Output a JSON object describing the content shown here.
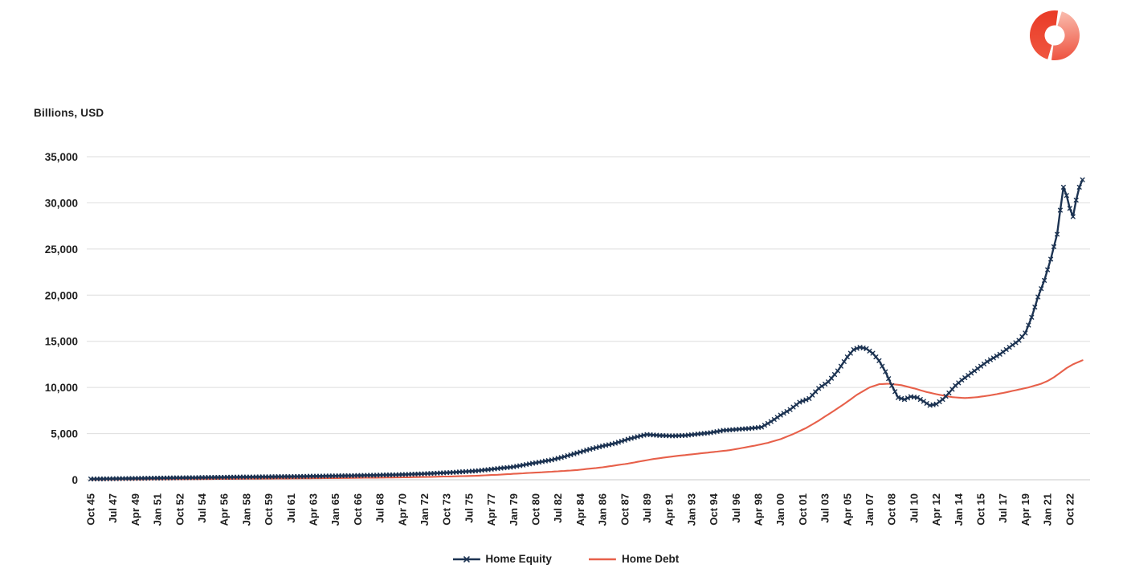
{
  "logo": {
    "name": "split-donut-logo",
    "left_color_top": "#e93b27",
    "left_color_bottom": "#f05740",
    "right_color_top": "#fac0b2",
    "right_color_bottom": "#ee5340"
  },
  "text_color": "#1f1f1f",
  "grid_color": "#dedede",
  "baseline_color": "#c8c8c8",
  "chart_data": {
    "type": "line",
    "title": "Billions, USD",
    "grid": "horizontal",
    "legend_position": "bottom-center",
    "x_axis": {
      "frequency": "quarterly",
      "start": "Oct 1945",
      "end": "Oct 2023",
      "tick_every_n_quarters": 7,
      "tick_labels": [
        "Oct 45",
        "Jul 47",
        "Apr 49",
        "Jan 51",
        "Oct 52",
        "Jul 54",
        "Apr 56",
        "Jan 58",
        "Oct 59",
        "Jul 61",
        "Apr 63",
        "Jan 65",
        "Oct 66",
        "Jul 68",
        "Apr 70",
        "Jan 72",
        "Oct 73",
        "Jul 75",
        "Apr 77",
        "Jan 79",
        "Oct 80",
        "Jul 82",
        "Apr 84",
        "Jan 86",
        "Oct 87",
        "Jul 89",
        "Apr 91",
        "Jan 93",
        "Oct 94",
        "Jul 96",
        "Apr 98",
        "Jan 00",
        "Oct 01",
        "Jul 03",
        "Apr 05",
        "Jan 07",
        "Oct 08",
        "Jul 10",
        "Apr 12",
        "Jan 14",
        "Oct 15",
        "Jul 17",
        "Apr 19",
        "Jan 21",
        "Oct 22"
      ]
    },
    "y_axis": {
      "title": "Billions, USD",
      "min": 0,
      "max": 35000,
      "tick_step": 5000,
      "tick_labels": [
        "0",
        "5,000",
        "10,000",
        "15,000",
        "20,000",
        "25,000",
        "30,000",
        "35,000"
      ]
    },
    "series": [
      {
        "name": "Home Equity",
        "color": "#1c3352",
        "marker": "x",
        "points_note": "[decimal_year, billions_usd] anchor values estimated from gridlines; line/markers are quarterly interpolations of these anchors",
        "points": [
          [
            1945.75,
            80
          ],
          [
            1948,
            120
          ],
          [
            1950,
            160
          ],
          [
            1952,
            200
          ],
          [
            1954,
            230
          ],
          [
            1956,
            270
          ],
          [
            1958,
            300
          ],
          [
            1960,
            330
          ],
          [
            1962,
            360
          ],
          [
            1964,
            400
          ],
          [
            1966,
            440
          ],
          [
            1968,
            490
          ],
          [
            1970,
            550
          ],
          [
            1972,
            650
          ],
          [
            1974,
            780
          ],
          [
            1976,
            950
          ],
          [
            1977,
            1100
          ],
          [
            1978,
            1250
          ],
          [
            1979,
            1400
          ],
          [
            1980,
            1650
          ],
          [
            1981,
            1900
          ],
          [
            1982,
            2150
          ],
          [
            1983,
            2500
          ],
          [
            1984,
            2900
          ],
          [
            1985,
            3300
          ],
          [
            1986,
            3650
          ],
          [
            1987,
            3950
          ],
          [
            1988,
            4400
          ],
          [
            1989,
            4750
          ],
          [
            1989.5,
            4900
          ],
          [
            1990.5,
            4800
          ],
          [
            1991.5,
            4750
          ],
          [
            1992.5,
            4800
          ],
          [
            1993.5,
            4950
          ],
          [
            1994.5,
            5100
          ],
          [
            1995.5,
            5350
          ],
          [
            1996.5,
            5450
          ],
          [
            1997.5,
            5550
          ],
          [
            1998.5,
            5700
          ],
          [
            1999.25,
            6300
          ],
          [
            2000,
            7000
          ],
          [
            2000.75,
            7600
          ],
          [
            2001.5,
            8400
          ],
          [
            2002.25,
            8800
          ],
          [
            2003,
            9900
          ],
          [
            2003.75,
            10600
          ],
          [
            2004.5,
            11800
          ],
          [
            2005.25,
            13300
          ],
          [
            2005.75,
            14100
          ],
          [
            2006.25,
            14350
          ],
          [
            2006.75,
            14200
          ],
          [
            2007.25,
            13700
          ],
          [
            2007.75,
            12900
          ],
          [
            2008.25,
            11700
          ],
          [
            2008.75,
            10200
          ],
          [
            2009.25,
            8900
          ],
          [
            2009.75,
            8700
          ],
          [
            2010.25,
            9000
          ],
          [
            2010.75,
            8900
          ],
          [
            2011.25,
            8500
          ],
          [
            2011.75,
            8050
          ],
          [
            2012.25,
            8200
          ],
          [
            2012.75,
            8700
          ],
          [
            2013.25,
            9400
          ],
          [
            2013.75,
            10200
          ],
          [
            2014.25,
            10800
          ],
          [
            2014.75,
            11300
          ],
          [
            2015.25,
            11800
          ],
          [
            2015.75,
            12300
          ],
          [
            2016.25,
            12800
          ],
          [
            2016.75,
            13200
          ],
          [
            2017.25,
            13600
          ],
          [
            2017.75,
            14100
          ],
          [
            2018.25,
            14600
          ],
          [
            2018.75,
            15100
          ],
          [
            2019.25,
            15900
          ],
          [
            2019.75,
            17600
          ],
          [
            2020.25,
            19800
          ],
          [
            2020.75,
            21600
          ],
          [
            2021.25,
            23900
          ],
          [
            2021.75,
            26600
          ],
          [
            2022,
            29200
          ],
          [
            2022.25,
            31700
          ],
          [
            2022.5,
            30800
          ],
          [
            2022.75,
            29400
          ],
          [
            2023,
            28500
          ],
          [
            2023.25,
            30300
          ],
          [
            2023.5,
            31700
          ],
          [
            2023.75,
            32500
          ]
        ]
      },
      {
        "name": "Home Debt",
        "color": "#e7604a",
        "marker": "none",
        "points_note": "[decimal_year, billions_usd] anchor values estimated from gridlines",
        "points": [
          [
            1945.75,
            15
          ],
          [
            1948,
            30
          ],
          [
            1950,
            40
          ],
          [
            1952,
            55
          ],
          [
            1954,
            70
          ],
          [
            1956,
            90
          ],
          [
            1958,
            110
          ],
          [
            1960,
            125
          ],
          [
            1962,
            150
          ],
          [
            1964,
            170
          ],
          [
            1966,
            195
          ],
          [
            1968,
            225
          ],
          [
            1970,
            255
          ],
          [
            1972,
            300
          ],
          [
            1974,
            360
          ],
          [
            1976,
            430
          ],
          [
            1978,
            560
          ],
          [
            1980,
            720
          ],
          [
            1982,
            870
          ],
          [
            1984,
            1050
          ],
          [
            1986,
            1350
          ],
          [
            1988,
            1750
          ],
          [
            1990,
            2250
          ],
          [
            1992,
            2600
          ],
          [
            1994,
            2900
          ],
          [
            1996,
            3200
          ],
          [
            1998,
            3700
          ],
          [
            1999,
            4000
          ],
          [
            2000,
            4400
          ],
          [
            2001,
            4950
          ],
          [
            2002,
            5600
          ],
          [
            2003,
            6400
          ],
          [
            2004,
            7300
          ],
          [
            2005,
            8200
          ],
          [
            2006,
            9200
          ],
          [
            2007,
            10000
          ],
          [
            2007.75,
            10350
          ],
          [
            2008.5,
            10400
          ],
          [
            2009.5,
            10250
          ],
          [
            2010.5,
            9900
          ],
          [
            2011.5,
            9500
          ],
          [
            2012.5,
            9200
          ],
          [
            2013.5,
            8950
          ],
          [
            2014.5,
            8850
          ],
          [
            2015.5,
            8950
          ],
          [
            2016.5,
            9150
          ],
          [
            2017.5,
            9400
          ],
          [
            2018.5,
            9700
          ],
          [
            2019.5,
            10000
          ],
          [
            2020.5,
            10400
          ],
          [
            2021,
            10700
          ],
          [
            2021.5,
            11100
          ],
          [
            2022,
            11600
          ],
          [
            2022.5,
            12100
          ],
          [
            2023,
            12500
          ],
          [
            2023.5,
            12800
          ],
          [
            2023.75,
            12950
          ]
        ]
      }
    ]
  }
}
